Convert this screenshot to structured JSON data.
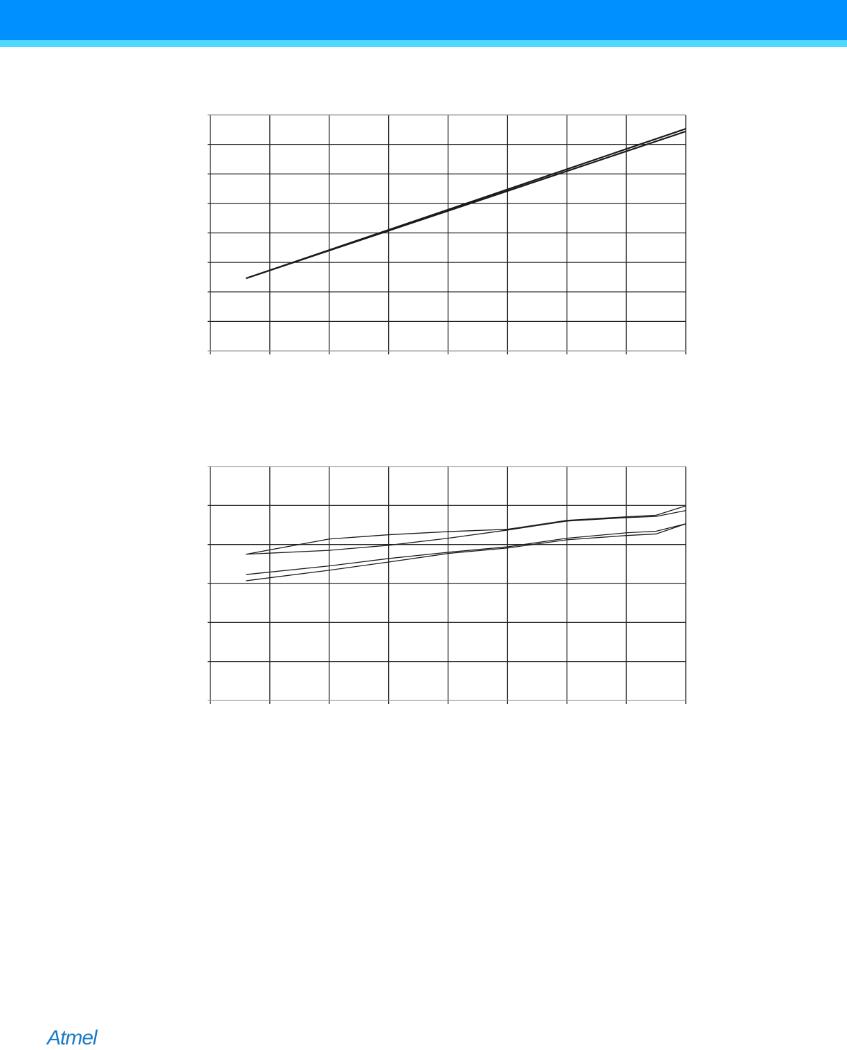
{
  "header": {
    "color": "#0090ff",
    "stripe_color": "#4fd8ff"
  },
  "logo": {
    "text": "Atmel",
    "color": "#1a7bc4"
  },
  "chart_data": [
    {
      "type": "line",
      "xlim": [
        0,
        8
      ],
      "ylim": [
        0,
        8
      ],
      "grid": true,
      "tick_labels_shown": false,
      "series": [
        {
          "x": [
            0.6,
            8
          ],
          "y": [
            2.46,
            7.53
          ]
        },
        {
          "x": [
            0.6,
            8
          ],
          "y": [
            2.46,
            7.44
          ]
        }
      ]
    },
    {
      "type": "line",
      "xlim": [
        0,
        8
      ],
      "ylim": [
        0,
        6
      ],
      "grid": true,
      "tick_labels_shown": false,
      "series": [
        {
          "x": [
            0.6,
            2,
            3,
            4,
            5,
            6,
            7,
            7.5,
            8
          ],
          "y": [
            3.75,
            4.14,
            4.25,
            4.33,
            4.39,
            4.62,
            4.71,
            4.75,
            4.99
          ]
        },
        {
          "x": [
            0.6,
            2,
            3,
            4,
            5,
            6,
            7,
            7.5,
            8
          ],
          "y": [
            3.75,
            3.85,
            3.98,
            4.16,
            4.37,
            4.6,
            4.69,
            4.72,
            4.87
          ]
        },
        {
          "x": [
            0.6,
            2,
            3,
            4,
            5,
            6,
            7,
            7.5,
            8
          ],
          "y": [
            3.23,
            3.45,
            3.64,
            3.8,
            3.94,
            4.16,
            4.3,
            4.34,
            4.53
          ]
        },
        {
          "x": [
            0.6,
            2,
            3,
            4,
            5,
            6,
            7,
            7.5,
            8
          ],
          "y": [
            3.07,
            3.34,
            3.55,
            3.77,
            3.91,
            4.12,
            4.23,
            4.27,
            4.53
          ]
        }
      ]
    }
  ]
}
